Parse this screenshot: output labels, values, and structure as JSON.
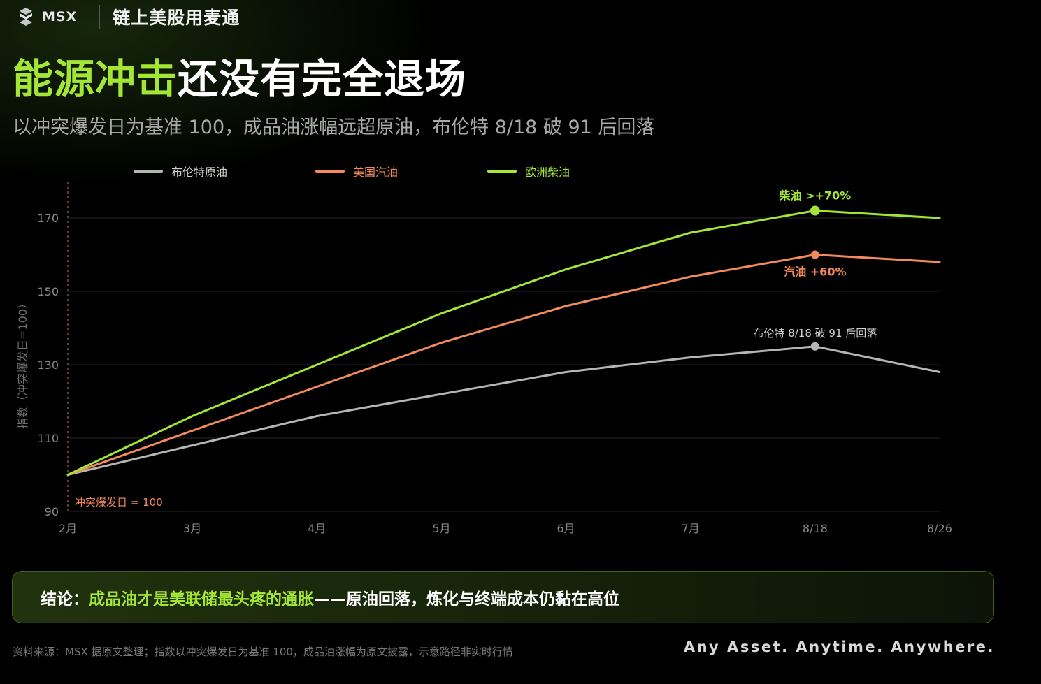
{
  "header": {
    "brand": "MSX",
    "title": "链上美股用麦通"
  },
  "headline": {
    "highlight": "能源冲击",
    "rest": "还没有完全退场"
  },
  "subtitle": "以冲突爆发日为基准 100，成品油涨幅远超原油，布伦特 8/18 破 91 后回落",
  "colors": {
    "brent": "#b5b5b5",
    "gasoline": "#f28a5c",
    "diesel": "#a3e635",
    "baseline_marker": "#f28a5c",
    "grid": "#262626",
    "axis_text": "#8a8a8a"
  },
  "chart_data": {
    "type": "line",
    "x": [
      "2月",
      "3月",
      "4月",
      "5月",
      "6月",
      "7月",
      "8/18",
      "8/26"
    ],
    "ylabel": "指数（冲突爆发日=100）",
    "xlabel": "",
    "yticks": [
      90,
      110,
      130,
      150,
      170
    ],
    "ylim": [
      90,
      170
    ],
    "grid": true,
    "legend_position": "top",
    "series": [
      {
        "name": "布伦特原油",
        "color_key": "brent",
        "values": [
          100,
          108,
          116,
          122,
          128,
          132,
          135,
          128
        ]
      },
      {
        "name": "美国汽油",
        "color_key": "gasoline",
        "values": [
          100,
          112,
          124,
          136,
          146,
          154,
          160,
          158
        ]
      },
      {
        "name": "欧洲柴油",
        "color_key": "diesel",
        "values": [
          100,
          116,
          130,
          144,
          156,
          166,
          172,
          170
        ]
      }
    ],
    "annotations": [
      {
        "text": "柴油 >+70%",
        "series": 2,
        "point": 6
      },
      {
        "text": "汽油 +60%",
        "series": 1,
        "point": 6
      },
      {
        "text": "布伦特 8/18 破 91 后回落",
        "series": 0,
        "point": 6
      }
    ],
    "baseline_label": "冲突爆发日 = 100"
  },
  "conclusion": {
    "label": "结论：",
    "highlight": "成品油才是美联储最头疼的通胀",
    "rest": "——原油回落，炼化与终端成本仍黏在高位"
  },
  "footer": {
    "source": "资料来源：MSX 据原文整理；指数以冲突爆发日为基准 100，成品油涨幅为原文披露，示意路径非实时行情",
    "tagline": "Any Asset. Anytime. Anywhere."
  }
}
